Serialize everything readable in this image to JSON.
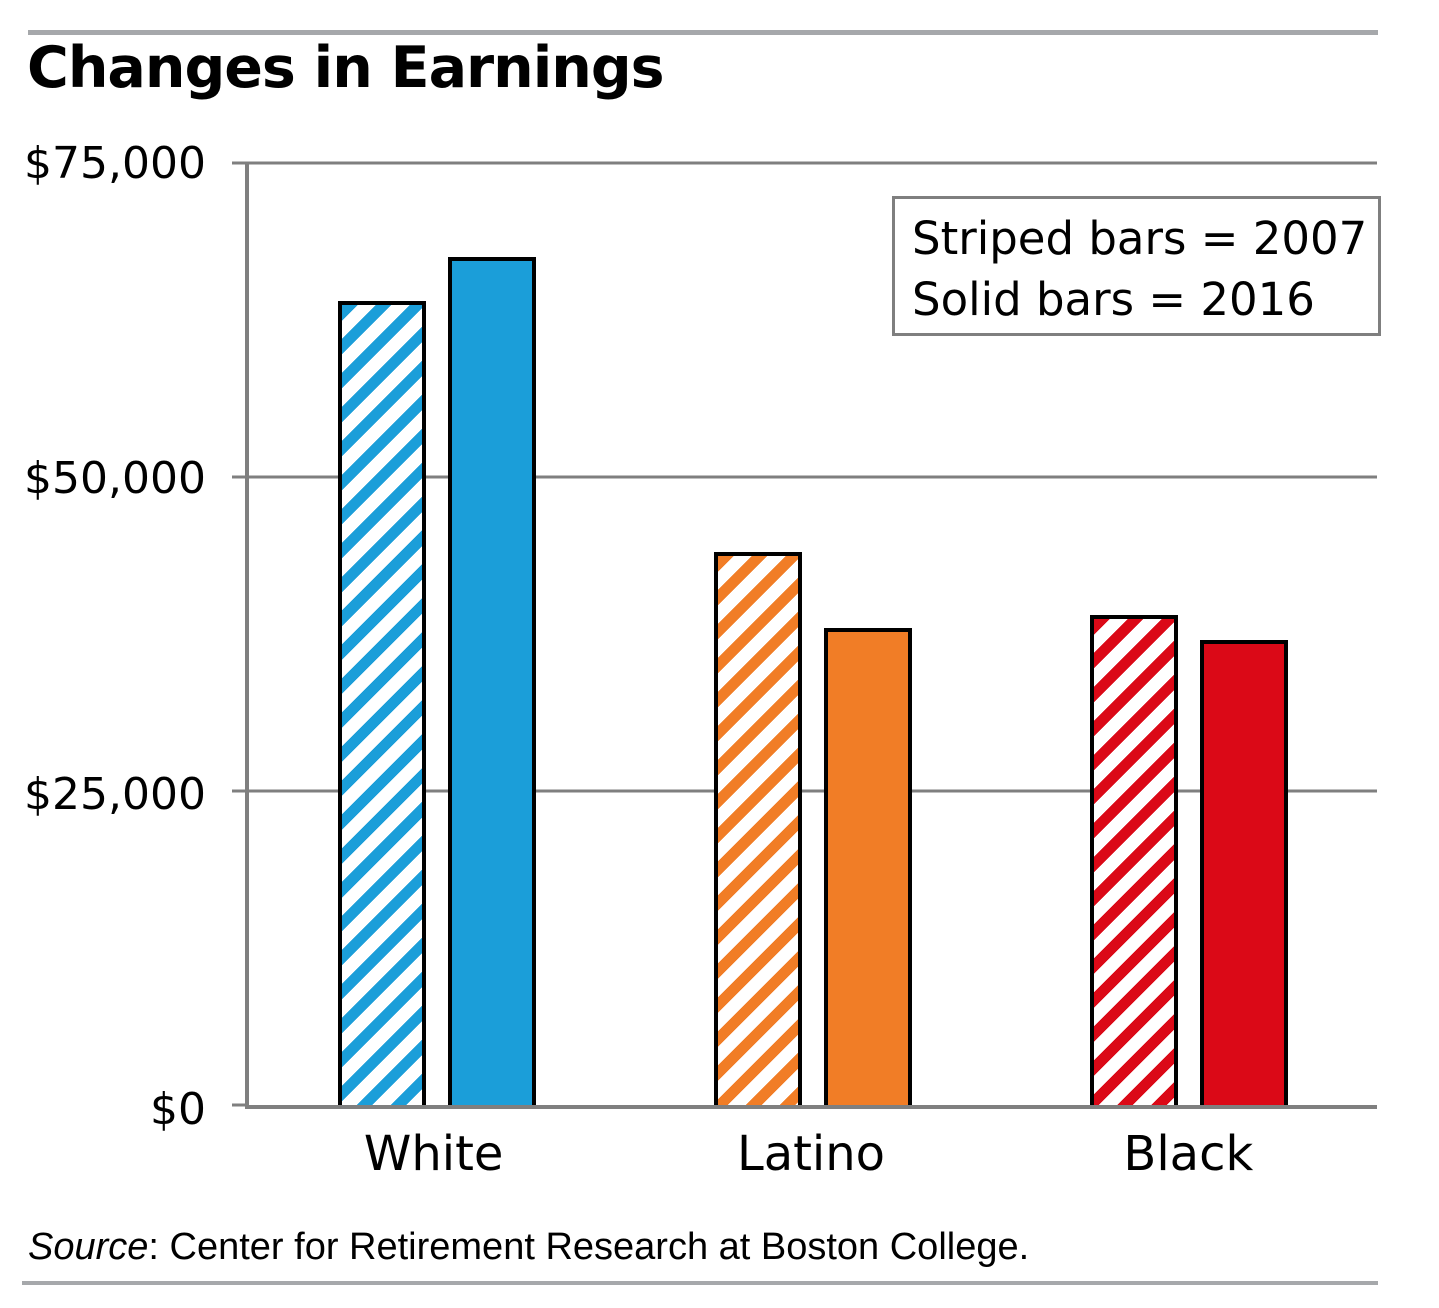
{
  "page": {
    "title": "Changes in Earnings",
    "source_prefix": "Source",
    "source_rest": ": Center for Retirement Research at Boston College."
  },
  "legend": {
    "line1": "Striped bars = 2007",
    "line2": "Solid bars = 2016"
  },
  "chart_data": {
    "type": "bar",
    "title": "Changes in Earnings",
    "categories": [
      "White",
      "Latino",
      "Black"
    ],
    "series": [
      {
        "name": "2007",
        "style": "striped",
        "values": [
          64000,
          44000,
          39000
        ]
      },
      {
        "name": "2016",
        "style": "solid",
        "values": [
          67500,
          38000,
          37000
        ]
      }
    ],
    "group_colors": [
      "#1b9ed9",
      "#f17d26",
      "#db0917"
    ],
    "ylim": [
      0,
      75000
    ],
    "yticks": [
      0,
      25000,
      50000,
      75000
    ],
    "ytick_labels": [
      "$0",
      "$25,000",
      "$50,000",
      "$75,000"
    ],
    "xlabel": "",
    "ylabel": "",
    "grid": true,
    "legend_position": "top-right",
    "source": "Source: Center for Retirement Research at Boston College."
  }
}
